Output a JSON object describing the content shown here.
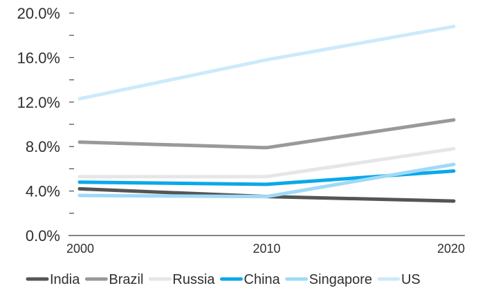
{
  "chart_data": {
    "type": "line",
    "x": [
      2000,
      2010,
      2020
    ],
    "x_tick_labels": [
      "2000",
      "2010",
      "2020"
    ],
    "y_tick_labels": [
      "0.0%",
      "4.0%",
      "8.0%",
      "12.0%",
      "16.0%",
      "20.0%"
    ],
    "ylim": [
      0,
      20
    ],
    "y_major_step": 4,
    "y_minor_step": 2,
    "grid": false,
    "legend_position": "bottom",
    "series": [
      {
        "name": "India",
        "values": [
          4.2,
          3.5,
          3.1
        ],
        "color": "#555555"
      },
      {
        "name": "Brazil",
        "values": [
          8.4,
          7.9,
          10.4
        ],
        "color": "#999999"
      },
      {
        "name": "Russia",
        "values": [
          5.3,
          5.3,
          7.8
        ],
        "color": "#e6e6e6"
      },
      {
        "name": "China",
        "values": [
          4.8,
          4.6,
          5.8
        ],
        "color": "#0aa8e8"
      },
      {
        "name": "Singapore",
        "values": [
          3.6,
          3.5,
          6.4
        ],
        "color": "#9fdaf7"
      },
      {
        "name": "US",
        "values": [
          12.3,
          15.8,
          18.8
        ],
        "color": "#cdeafb"
      }
    ]
  }
}
